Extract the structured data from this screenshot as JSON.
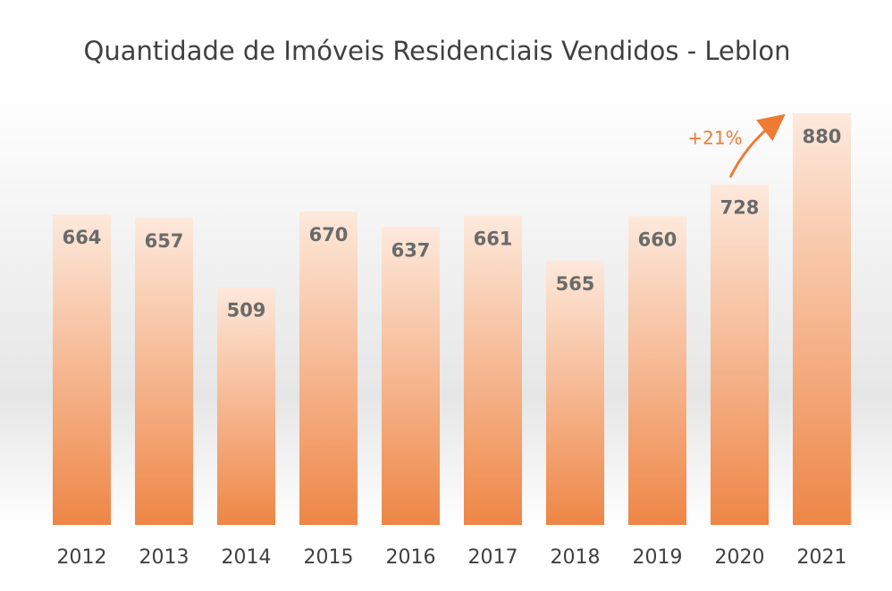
{
  "chart_data": {
    "type": "bar",
    "title": "Quantidade de Imóveis Residenciais Vendidos - Leblon",
    "xlabel": "",
    "ylabel": "",
    "categories": [
      "2012",
      "2013",
      "2014",
      "2015",
      "2016",
      "2017",
      "2018",
      "2019",
      "2020",
      "2021"
    ],
    "values": [
      664,
      657,
      509,
      670,
      637,
      661,
      565,
      660,
      728,
      880
    ],
    "ylim": [
      0,
      880
    ],
    "grid": false,
    "legend": "none",
    "annotation": {
      "text": "+21%",
      "from": "2020",
      "to": "2021"
    }
  },
  "colors": {
    "bar_top": "#fde9dc",
    "bar_bottom": "#ee8646",
    "accent": "#ee7a33",
    "data_label": "#6a6a6a",
    "tick_label": "#404040"
  }
}
